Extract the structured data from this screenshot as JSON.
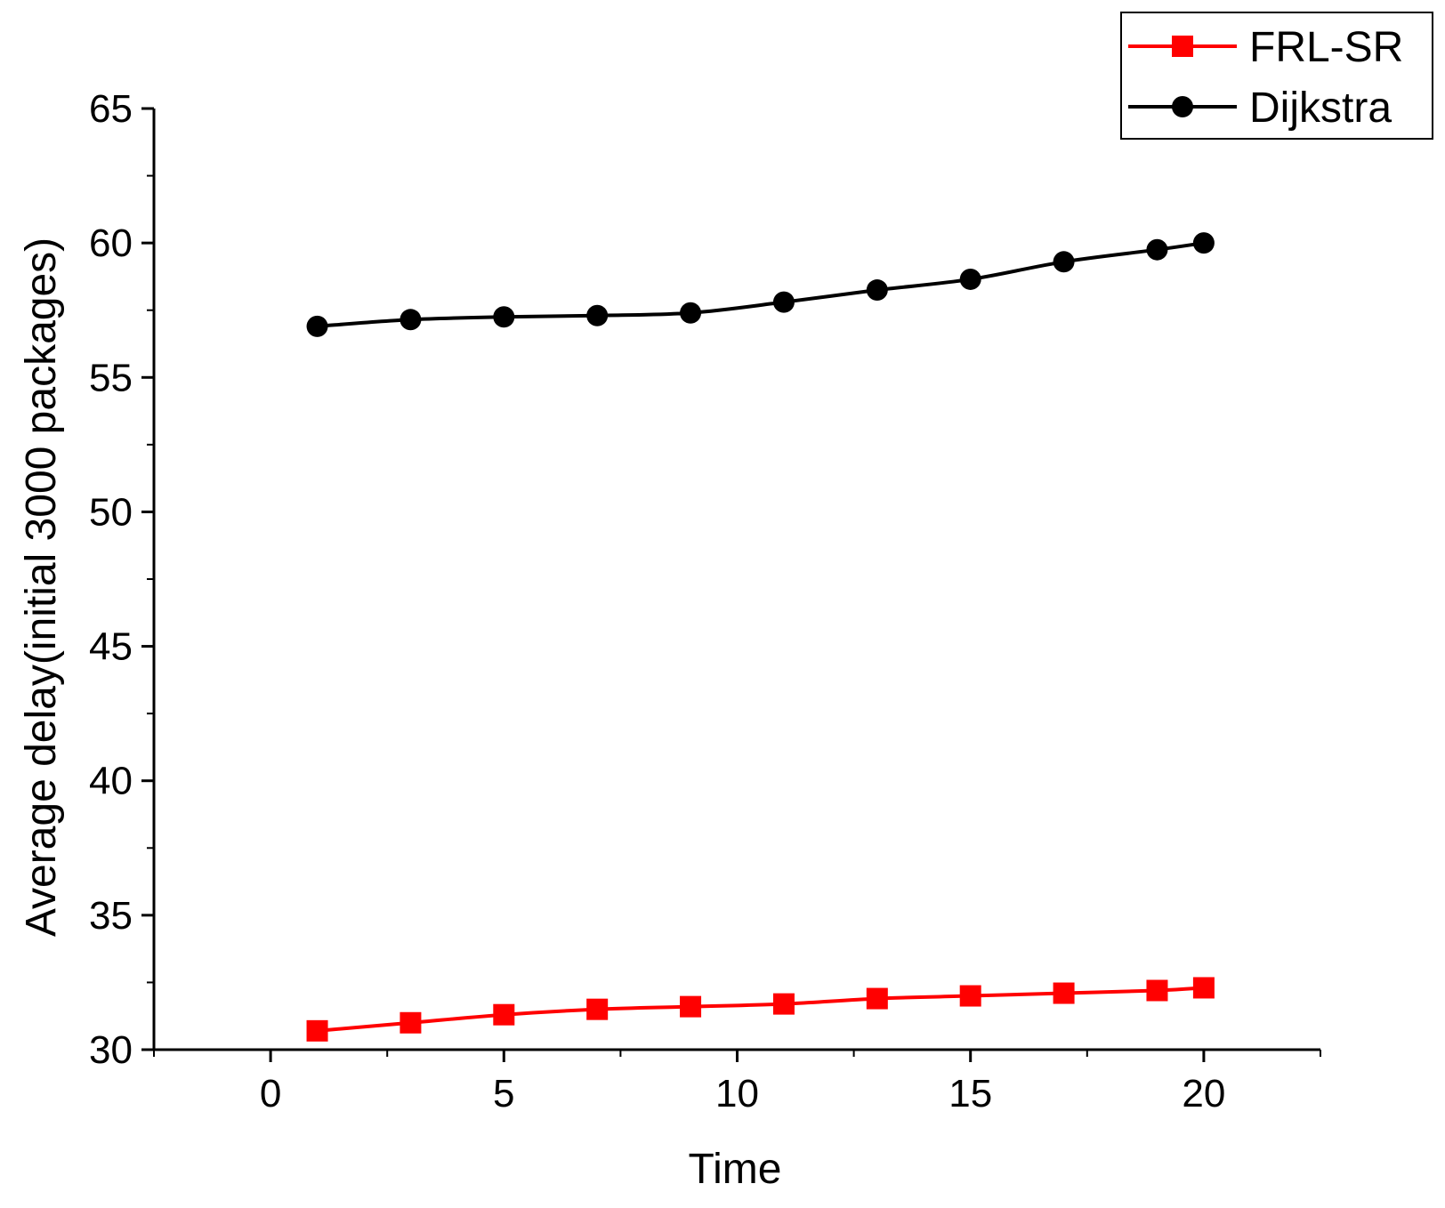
{
  "chart_data": {
    "type": "line",
    "title": "",
    "xlabel": "Time",
    "ylabel": "Average delay(initial 3000 packages)",
    "xlim": [
      -2.5,
      22.5
    ],
    "ylim": [
      30,
      65
    ],
    "xticks": [
      0,
      5,
      10,
      15,
      20
    ],
    "yticks": [
      30,
      35,
      40,
      45,
      50,
      55,
      60,
      65
    ],
    "legend_position": "top-right",
    "series": [
      {
        "name": "FRL-SR",
        "color": "#ff0000",
        "marker": "square",
        "x": [
          1,
          3,
          5,
          7,
          9,
          11,
          13,
          15,
          17,
          19,
          20
        ],
        "y": [
          30.7,
          31.0,
          31.3,
          31.5,
          31.6,
          31.7,
          31.9,
          32.0,
          32.1,
          32.2,
          32.3
        ]
      },
      {
        "name": "Dijkstra",
        "color": "#000000",
        "marker": "circle",
        "x": [
          1,
          3,
          5,
          7,
          9,
          11,
          13,
          15,
          17,
          19,
          20
        ],
        "y": [
          56.9,
          57.15,
          57.25,
          57.3,
          57.4,
          57.8,
          58.25,
          58.65,
          59.3,
          59.75,
          60.0
        ]
      }
    ]
  }
}
